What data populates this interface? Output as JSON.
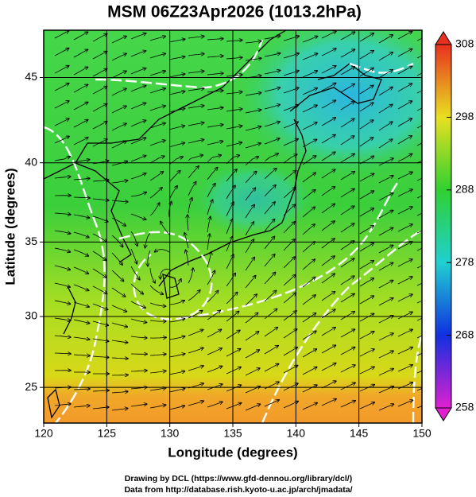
{
  "chart_data": {
    "type": "map",
    "title": "MSM 06Z23Apr2026 (1013.2hPa)",
    "xlabel": "Longitude (degrees)",
    "ylabel": "Latitude  (degrees)",
    "xlim": [
      120,
      150
    ],
    "xticks": [
      120,
      125,
      130,
      135,
      140,
      145,
      150
    ],
    "ylim": [
      22.4,
      47.6
    ],
    "yticks": [
      25,
      30,
      35,
      40,
      45
    ],
    "projection": "mercator",
    "grid": true,
    "colorbar": {
      "lim": [
        258,
        308
      ],
      "ticks": [
        258,
        268,
        278,
        288,
        298,
        308
      ]
    }
  },
  "footer": [
    "Drawing by DCL (https://www.gfd-dennou.org/library/dcl/)",
    "Data from http://database.rish.kyoto-u.ac.jp/arch/jmadata/"
  ]
}
